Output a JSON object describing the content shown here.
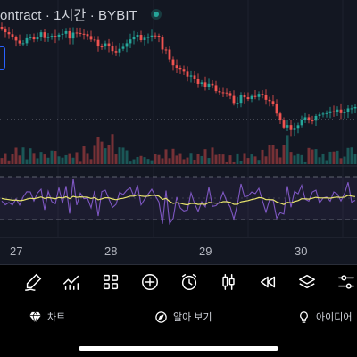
{
  "header": {
    "title": "ontract · 1시간 · BYBIT"
  },
  "x_axis_labels": [
    "27",
    "28",
    "29",
    "30"
  ],
  "colors": {
    "background": "#131722",
    "bull": "#26a69a",
    "bear": "#ef5350",
    "rsi_line": "#7e57c2",
    "rsi_ma": "#e9e56d",
    "accent": "#2962ff"
  },
  "toolbar": {
    "tools": [
      "brush-icon",
      "indicators-icon",
      "widgets-icon",
      "add-icon",
      "alarm-icon",
      "chart-type-icon",
      "replay-icon",
      "layers-icon",
      "settings-sliders-icon"
    ]
  },
  "tabs": [
    {
      "label": "차트",
      "icon": "diamond-icon"
    },
    {
      "label": "알아 보기",
      "icon": "explore-icon"
    },
    {
      "label": "아이디어",
      "icon": "idea-bulb-icon"
    }
  ]
}
